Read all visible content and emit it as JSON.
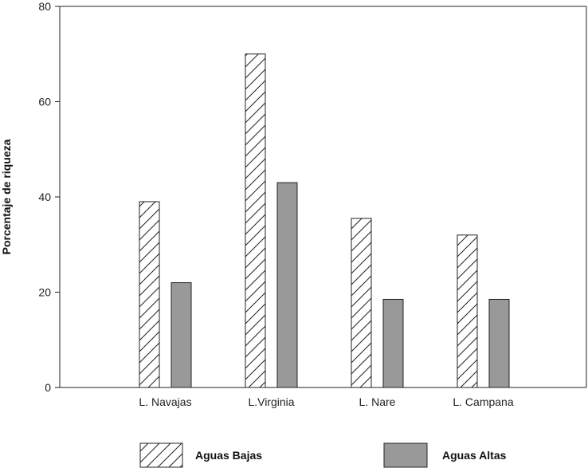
{
  "chart_data": {
    "type": "bar",
    "categories": [
      "L. Navajas",
      "L.Virginia",
      "L. Nare",
      "L. Campana"
    ],
    "series": [
      {
        "name": "Aguas Bajas",
        "values": [
          39,
          70,
          35.5,
          32
        ],
        "fill": "hatch"
      },
      {
        "name": "Aguas Altas",
        "values": [
          22,
          43,
          18.5,
          18.5
        ],
        "fill": "#999999"
      }
    ],
    "title": "",
    "xlabel": "",
    "ylabel": "Porcentaje de riqueza",
    "ylim": [
      0,
      80
    ],
    "yticks": [
      "0",
      "20",
      "40",
      "60",
      "80"
    ],
    "grid": false,
    "legend": "bottom"
  }
}
